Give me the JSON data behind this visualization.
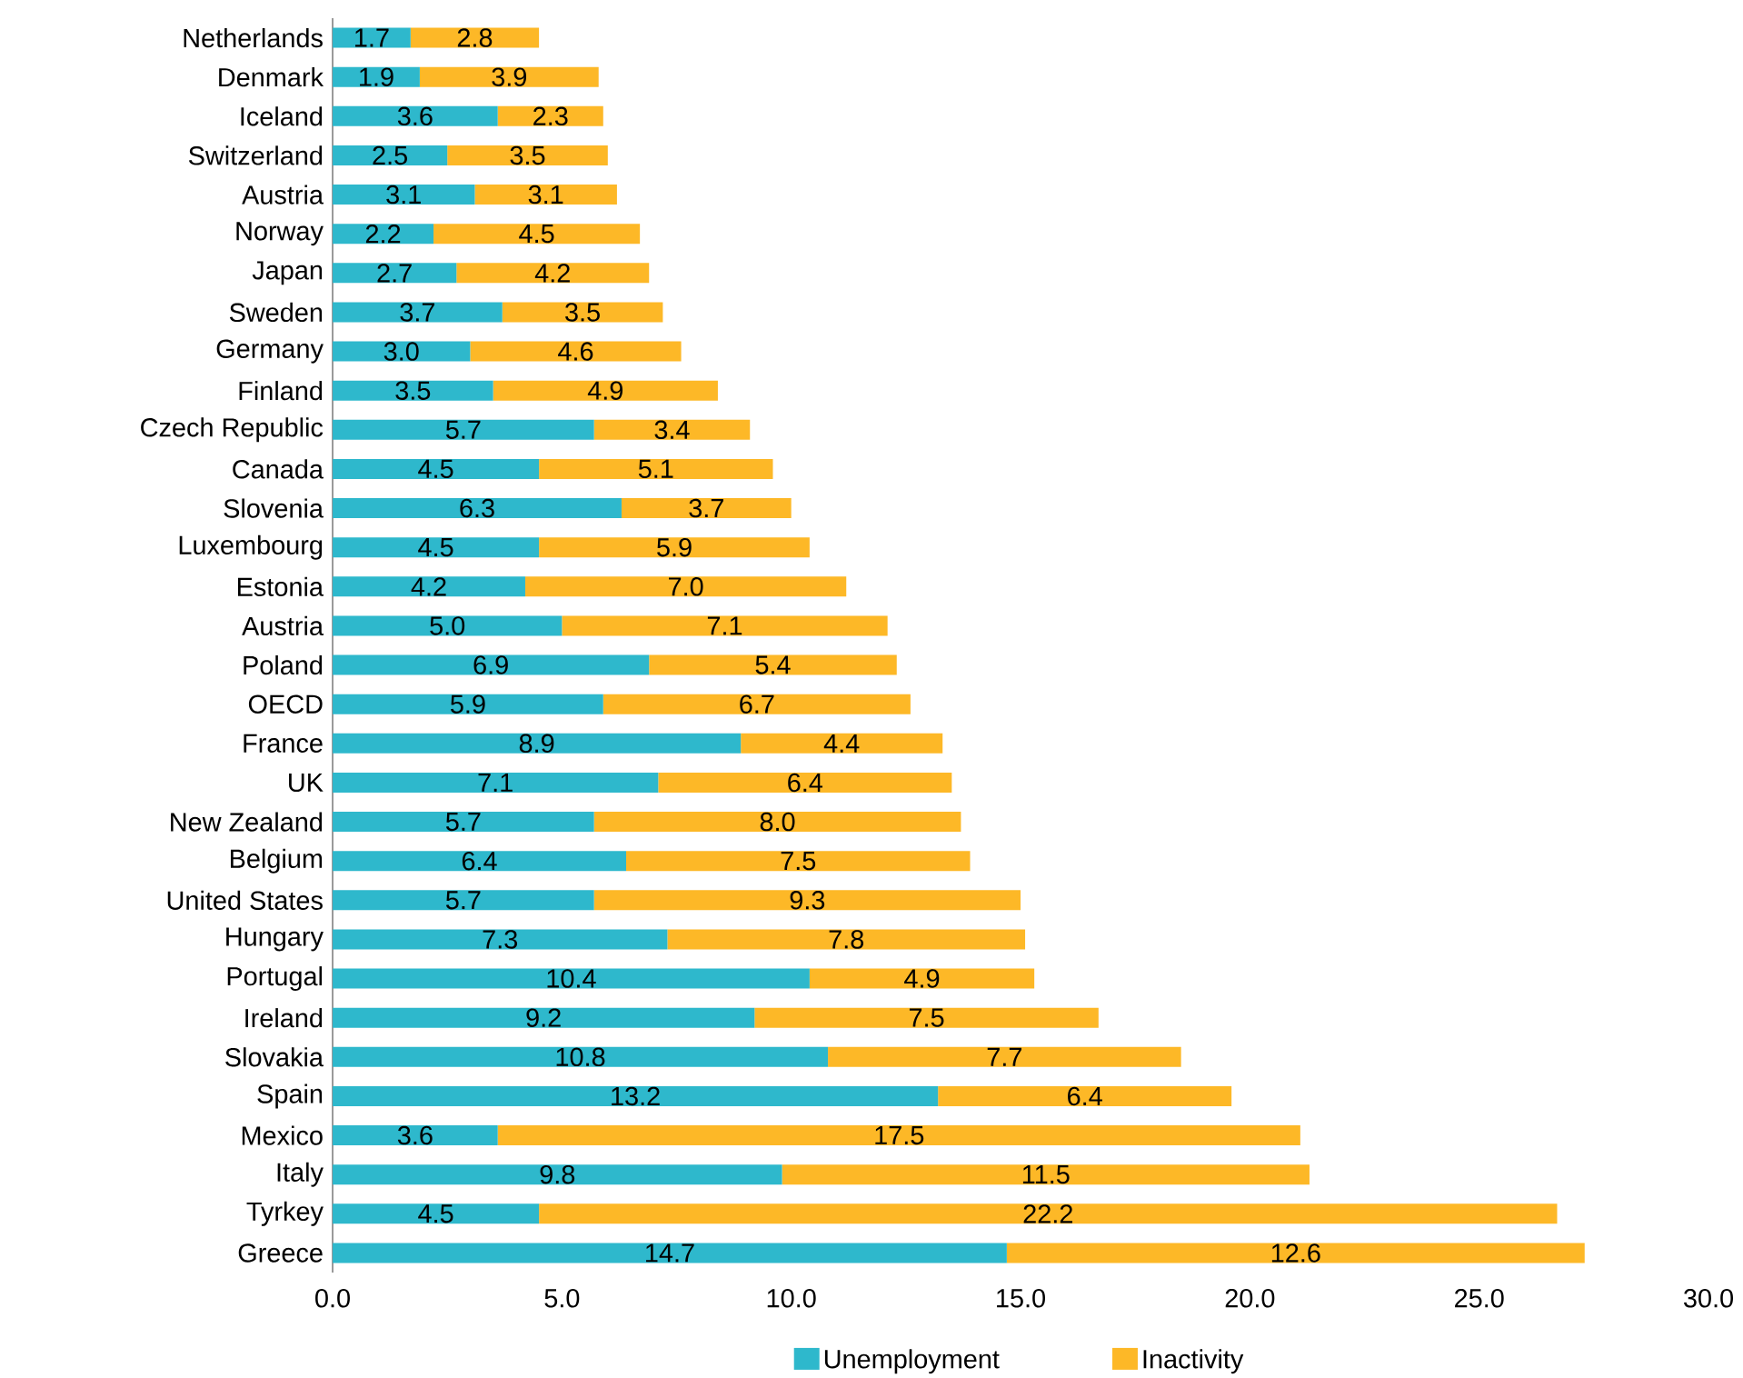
{
  "chart_data": {
    "type": "bar",
    "orientation": "horizontal",
    "stacked": true,
    "legend": "bottom",
    "grid": false,
    "categories": [
      "Netherlands",
      "Denmark",
      "Iceland",
      "Switzerland",
      "Austria",
      "Norway",
      "Japan",
      "Sweden",
      "Germany",
      "Finland",
      "Czech Republic",
      "Canada",
      "Slovenia",
      "Luxembourg",
      "Estonia",
      "Austria",
      "Poland",
      "OECD",
      "France",
      "UK",
      "New Zealand",
      "Belgium",
      "United States",
      "Hungary",
      "Portugal",
      "Ireland",
      "Slovakia",
      "Spain",
      "Mexico",
      "Italy",
      "Tyrkey",
      "Greece"
    ],
    "series": [
      {
        "name": "Unemployment",
        "color": "#2eb8cc",
        "values": [
          1.7,
          1.9,
          3.6,
          2.5,
          3.1,
          2.2,
          2.7,
          3.7,
          3.0,
          3.5,
          5.7,
          4.5,
          6.3,
          4.5,
          4.2,
          5.0,
          6.9,
          5.9,
          8.9,
          7.1,
          5.7,
          6.4,
          5.7,
          7.3,
          10.4,
          9.2,
          10.8,
          13.2,
          3.6,
          9.8,
          4.5,
          14.7
        ],
        "value_labels": [
          "1.7",
          "1.9",
          "3.6",
          "2.5",
          "3.1",
          "2.2",
          "2.7",
          "3.7",
          "3.0",
          "3.5",
          "5.7",
          "4.5",
          "6.3",
          "4.5",
          "4.2",
          "5.0",
          "6.9",
          "5.9",
          "8.9",
          "7.1",
          "5.7",
          "6.4",
          "5.7",
          "7.3",
          "10.4",
          "9.2",
          "10.8",
          "13.2",
          "3.6",
          "9.8",
          "4.5",
          "14.7"
        ]
      },
      {
        "name": "Inactivity",
        "color": "#fdb827",
        "values": [
          2.8,
          3.9,
          2.3,
          3.5,
          3.1,
          4.5,
          4.2,
          3.5,
          4.6,
          4.9,
          3.4,
          5.1,
          3.7,
          5.9,
          7.0,
          7.1,
          5.4,
          6.7,
          4.4,
          6.4,
          8.0,
          7.5,
          9.3,
          7.8,
          4.9,
          7.5,
          7.7,
          6.4,
          17.5,
          11.5,
          22.2,
          12.6
        ],
        "value_labels": [
          "2.8",
          "3.9",
          "2.3",
          "3.5",
          "3.1",
          "4.5",
          "4.2",
          "3.5",
          "4.6",
          "4.9",
          "3.4",
          "5.1",
          "3.7",
          "5.9",
          "7.0",
          "7.1",
          "5.4",
          "6.7",
          "4.4",
          "6.4",
          "8.0",
          "7.5",
          "9.3",
          "7.8",
          "4.9",
          "7.5",
          "7.7",
          "6.4",
          "17.5",
          "11.5",
          "22.2",
          "12.6"
        ]
      }
    ],
    "xlim": [
      0,
      30
    ],
    "xticks": [
      {
        "value": 0,
        "label": "0.0"
      },
      {
        "value": 5,
        "label": "5.0"
      },
      {
        "value": 10,
        "label": "10.0"
      },
      {
        "value": 15,
        "label": "15.0"
      },
      {
        "value": 20,
        "label": "20.0"
      },
      {
        "value": 25,
        "label": "25.0"
      },
      {
        "value": 30,
        "label": "30.0"
      }
    ]
  }
}
